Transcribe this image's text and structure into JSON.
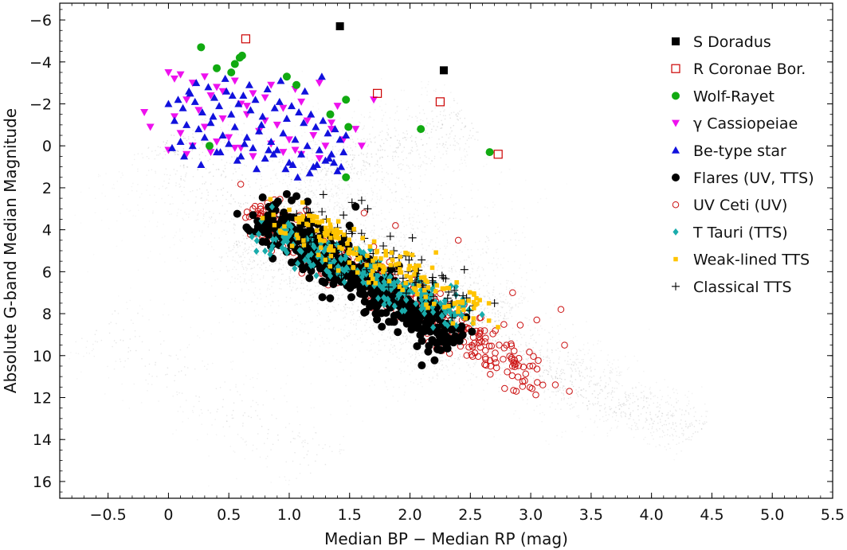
{
  "chart_data": {
    "type": "scatter",
    "title": "",
    "xlabel": "Median BP − Median RP (mag)",
    "ylabel": "Absolute G-band Median Magnitude",
    "xlim": [
      -0.9,
      5.5
    ],
    "ylim": [
      16.8,
      -6.8
    ],
    "y_inverted": true,
    "x_ticks": [
      -0.5,
      0,
      0.5,
      1.0,
      1.5,
      2.0,
      2.5,
      3.0,
      3.5,
      4.0,
      4.5,
      5.0,
      5.5
    ],
    "x_tick_labels": [
      "−0.5",
      "0",
      "0.5",
      "1.0",
      "1.5",
      "2.0",
      "2.5",
      "3.0",
      "3.5",
      "4.0",
      "4.5",
      "5.0",
      "5.5"
    ],
    "y_ticks": [
      -6,
      -4,
      -2,
      0,
      2,
      4,
      6,
      8,
      10,
      12,
      14,
      16
    ],
    "y_tick_labels": [
      "−6",
      "−4",
      "−2",
      "0",
      "2",
      "4",
      "6",
      "8",
      "10",
      "12",
      "14",
      "16"
    ],
    "grid": false,
    "legend_position": "top-right",
    "background": {
      "name": "Gaia DR2 field stars (grey density)",
      "color": "#9a9a9a",
      "segments": [
        {
          "from": [
            0.75,
            3.5
          ],
          "to": [
            2.6,
            9.2
          ],
          "width": 1.9,
          "weight": 1.0
        },
        {
          "from": [
            2.6,
            9.2
          ],
          "to": [
            3.6,
            12.0
          ],
          "width": 1.2,
          "weight": 0.45
        },
        {
          "from": [
            3.6,
            12.0
          ],
          "to": [
            4.4,
            13.6
          ],
          "width": 0.8,
          "weight": 0.25
        },
        {
          "from": [
            0.0,
            -0.5
          ],
          "to": [
            0.8,
            3.6
          ],
          "width": 2.4,
          "weight": 0.45
        },
        {
          "from": [
            1.0,
            1.6
          ],
          "to": [
            2.5,
            -1.2
          ],
          "width": 1.3,
          "weight": 0.45
        },
        {
          "from": [
            -0.6,
            8.5
          ],
          "to": [
            1.3,
            15.2
          ],
          "width": 1.4,
          "weight": 0.22
        },
        {
          "from": [
            1.5,
            0.8
          ],
          "to": [
            2.8,
            5.2
          ],
          "width": 2.2,
          "weight": 0.15
        }
      ]
    },
    "series": [
      {
        "name": "S Doradus",
        "marker": "square-filled",
        "color": "#000000",
        "x": [
          1.42,
          2.28
        ],
        "y": [
          -5.7,
          -3.6
        ]
      },
      {
        "name": "R Coronae Bor.",
        "marker": "square-open",
        "color": "#cc0000",
        "x": [
          0.64,
          1.73,
          2.25,
          2.73
        ],
        "y": [
          -5.1,
          -2.5,
          -2.1,
          0.4
        ]
      },
      {
        "name": "Wolf-Rayet",
        "marker": "circle-filled",
        "color": "#11aa11",
        "x": [
          0.27,
          0.61,
          0.59,
          0.55,
          0.4,
          0.52,
          0.98,
          1.06,
          1.47,
          1.34,
          1.49,
          2.09,
          2.66,
          0.34,
          1.47
        ],
        "y": [
          -4.7,
          -4.3,
          -4.2,
          -3.9,
          -3.7,
          -3.5,
          -3.3,
          -2.9,
          -2.2,
          -1.5,
          -0.9,
          -0.8,
          0.3,
          0.0,
          1.5
        ]
      },
      {
        "name": "γ Cassiopeiae",
        "marker": "triangle-down-filled",
        "color": "#ee11ee",
        "x": [
          0.0,
          0.05,
          0.1,
          0.2,
          0.3,
          0.4,
          0.55,
          0.7,
          0.85,
          1.05,
          1.25,
          0.15,
          0.35,
          0.6,
          0.8,
          0.95,
          1.1,
          1.4,
          1.7,
          -0.2,
          0.05,
          0.25,
          0.45,
          0.65,
          0.9,
          1.15,
          1.35,
          1.55,
          0.1,
          0.3,
          0.5,
          0.75,
          1.0,
          1.2,
          0.2,
          0.4,
          0.6,
          0.85,
          1.05,
          1.3,
          1.45,
          0.0,
          0.15,
          0.35,
          0.55,
          0.7,
          0.95,
          1.1,
          1.25,
          0.65,
          0.8,
          0.45,
          1.35,
          1.6,
          -0.15
        ],
        "y": [
          -3.5,
          -3.2,
          -3.4,
          -3.0,
          -3.3,
          -2.8,
          -3.1,
          -2.5,
          -2.9,
          -2.7,
          -3.0,
          -2.2,
          -2.4,
          -2.0,
          -2.3,
          -1.8,
          -2.1,
          -1.9,
          -2.2,
          -1.6,
          -1.4,
          -1.7,
          -1.3,
          -1.5,
          -1.0,
          -1.2,
          -1.1,
          -0.8,
          -0.6,
          -0.9,
          -0.4,
          -0.7,
          -0.3,
          -0.5,
          0.0,
          -0.2,
          0.1,
          -0.1,
          0.2,
          0.0,
          -0.3,
          0.2,
          0.4,
          0.3,
          0.1,
          0.5,
          0.3,
          0.4,
          0.6,
          -1.9,
          -1.2,
          -2.6,
          -0.8,
          0.0,
          -0.9
        ]
      },
      {
        "name": "Be-type star",
        "marker": "triangle-up-filled",
        "color": "#1111dd",
        "x": [
          0.0,
          0.08,
          0.12,
          0.18,
          0.22,
          0.28,
          0.33,
          0.38,
          0.42,
          0.48,
          0.52,
          0.58,
          0.62,
          0.68,
          0.72,
          0.78,
          0.82,
          0.88,
          0.92,
          0.98,
          1.02,
          1.08,
          1.12,
          1.18,
          1.22,
          1.28,
          1.32,
          1.38,
          1.42,
          0.05,
          0.15,
          0.25,
          0.35,
          0.45,
          0.55,
          0.65,
          0.75,
          0.85,
          0.95,
          1.05,
          1.15,
          1.25,
          1.35,
          0.1,
          0.2,
          0.3,
          0.4,
          0.5,
          0.6,
          0.7,
          0.8,
          0.9,
          1.0,
          1.1,
          1.2,
          1.3,
          1.4,
          0.13,
          0.27,
          0.43,
          0.57,
          0.73,
          0.87,
          1.03,
          1.17,
          1.33,
          0.23,
          0.47,
          0.67,
          0.93,
          1.13,
          1.27,
          1.37,
          1.45,
          1.43,
          0.37,
          0.63,
          0.83,
          1.07,
          0.17,
          0.53,
          0.77,
          1.23,
          1.47,
          0.03,
          0.97
        ],
        "y": [
          -2.0,
          -2.2,
          -1.8,
          -2.5,
          -2.1,
          -1.6,
          -2.8,
          -2.3,
          -1.9,
          -2.6,
          -1.5,
          -2.0,
          -2.4,
          -1.7,
          -2.2,
          -1.4,
          -2.7,
          -1.8,
          -2.1,
          -1.3,
          -1.9,
          -1.6,
          -1.1,
          -1.5,
          -0.9,
          -1.2,
          -0.6,
          -0.8,
          -0.3,
          -1.2,
          -1.0,
          -0.8,
          -1.1,
          -0.5,
          -0.9,
          -0.4,
          -0.7,
          -0.2,
          -0.6,
          -0.3,
          0.0,
          0.2,
          0.4,
          -0.2,
          0.0,
          -0.4,
          0.3,
          -0.1,
          0.5,
          0.1,
          0.6,
          0.2,
          0.8,
          0.4,
          1.0,
          0.7,
          1.2,
          0.5,
          0.9,
          0.3,
          0.7,
          1.1,
          0.4,
          0.9,
          1.3,
          0.6,
          -3.0,
          -3.2,
          -2.9,
          -3.1,
          -2.6,
          -3.3,
          0.8,
          0.3,
          1.0,
          -1.4,
          -0.1,
          0.2,
          1.5,
          -2.6,
          -2.4,
          -1.0,
          0.9,
          -0.5,
          0.1,
          1.1
        ]
      },
      {
        "name": "Flares (UV, TTS)",
        "marker": "circle-filled",
        "color": "#000000",
        "cloud": {
          "count": 480,
          "from": [
            0.72,
            3.3
          ],
          "to": [
            2.35,
            9.2
          ],
          "spread": 0.55,
          "seed": 11
        },
        "extra_x": [
          0.98,
          1.02,
          1.06,
          1.55,
          1.5,
          1.45,
          0.7,
          1.95
        ],
        "extra_y": [
          2.3,
          2.6,
          2.4,
          2.9,
          3.8,
          4.4,
          3.3,
          6.8
        ]
      },
      {
        "name": "UV Ceti (UV)",
        "marker": "circle-open",
        "color": "#cc1111",
        "cloud": {
          "count": 340,
          "from": [
            0.7,
            3.2
          ],
          "to": [
            3.1,
            11.0
          ],
          "spread": 0.6,
          "seed": 23
        },
        "extra_x": [
          3.25,
          3.28,
          3.05,
          2.85,
          2.95,
          3.1,
          2.88,
          3.32,
          0.7,
          1.62,
          1.88,
          2.4
        ],
        "extra_y": [
          7.8,
          9.5,
          8.3,
          7.0,
          11.2,
          11.4,
          11.7,
          11.7,
          3.0,
          3.2,
          3.8,
          4.5
        ]
      },
      {
        "name": "T Tauri (TTS)",
        "marker": "diamond-filled",
        "color": "#1aacac",
        "cloud": {
          "count": 230,
          "from": [
            0.75,
            4.1
          ],
          "to": [
            2.45,
            8.0
          ],
          "spread": 0.45,
          "seed": 37
        },
        "extra_x": [],
        "extra_y": []
      },
      {
        "name": "Weak-lined TTS",
        "marker": "square-small-filled",
        "color": "#ffc400",
        "cloud": {
          "count": 190,
          "from": [
            0.85,
            3.2
          ],
          "to": [
            2.6,
            7.8
          ],
          "spread": 0.55,
          "seed": 53
        },
        "extra_x": [],
        "extra_y": []
      },
      {
        "name": "Classical TTS",
        "marker": "plus",
        "color": "#000000",
        "cloud": {
          "count": 95,
          "from": [
            1.05,
            3.6
          ],
          "to": [
            2.5,
            7.4
          ],
          "spread": 0.7,
          "seed": 71
        },
        "extra_x": [
          1.6,
          1.65,
          1.45,
          1.52,
          2.45,
          2.7,
          2.35,
          1.4
        ],
        "extra_y": [
          2.6,
          3.0,
          3.3,
          2.7,
          5.9,
          7.5,
          8.2,
          3.9
        ]
      }
    ]
  }
}
